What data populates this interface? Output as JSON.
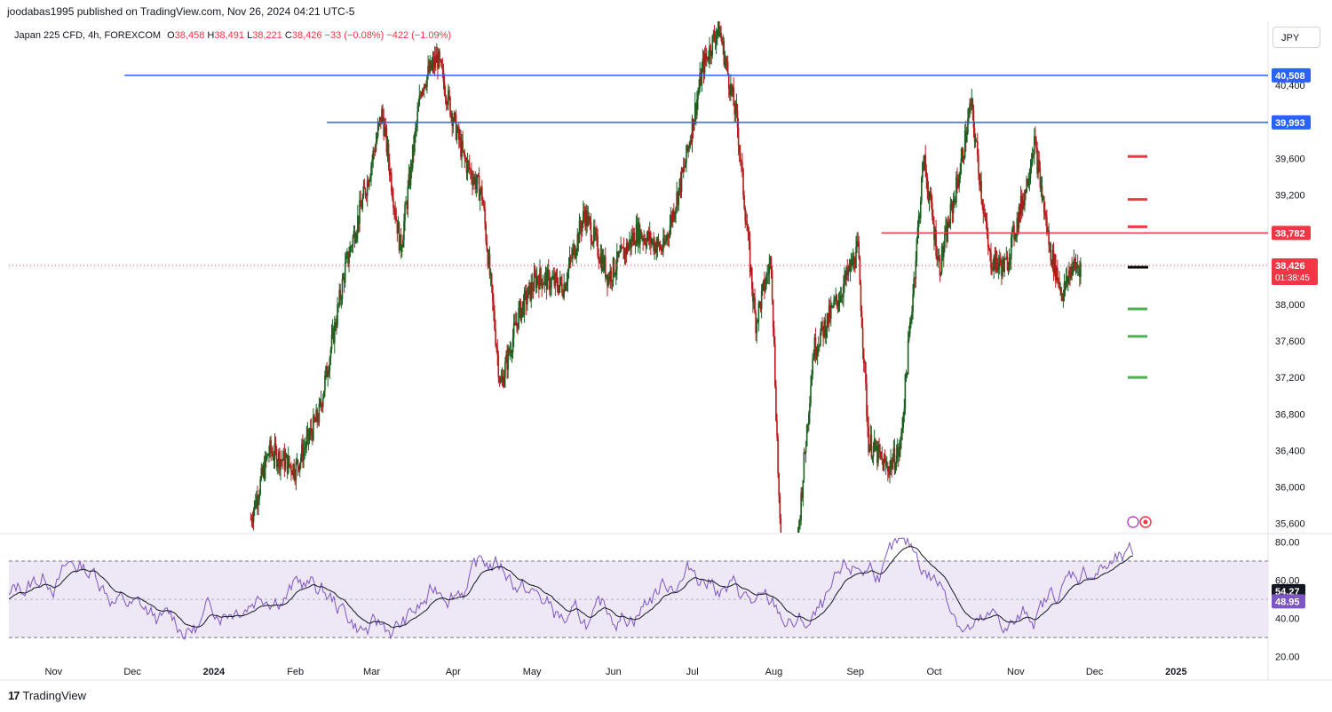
{
  "header": {
    "published_by": "joodabas1995 published on TradingView.com, Nov 26, 2024 04:21 UTC-5"
  },
  "symbol_line": {
    "name": "Japan 225 CFD, 4h, FOREXCOM",
    "o_label": "O",
    "o": "38,458",
    "h_label": "H",
    "h": "38,491",
    "l_label": "L",
    "l": "38,221",
    "c_label": "C",
    "c": "38,426",
    "change": "−33 (−0.08%)",
    "change2": "−422 (−1.09%)"
  },
  "currency_button": "JPY",
  "footer": {
    "logo": "17",
    "brand": "TradingView"
  },
  "colors": {
    "up": "#1b5e20",
    "down": "#b71c1c",
    "hline_blue": "#2962ff",
    "hline_red": "#f23645",
    "target_red": "#f23645",
    "target_green": "#4caf50",
    "rsi_line": "#7e57c2",
    "rsi_ma": "#131722",
    "rsi_band": "#ede7f6"
  },
  "chart_data": [
    {
      "type": "candlestick",
      "title": "Japan 225 CFD, 4h, FOREXCOM",
      "yticks": [
        "40,400",
        "39,600",
        "39,200",
        "38,000",
        "37,600",
        "37,200",
        "36,800",
        "36,400",
        "36,000",
        "35,600"
      ],
      "ylim": [
        35500,
        41100
      ],
      "xticks": [
        "Nov",
        "Dec",
        "2024",
        "Feb",
        "Mar",
        "Apr",
        "May",
        "Jun",
        "Jul",
        "Aug",
        "Sep",
        "Oct",
        "Nov",
        "Dec",
        "2025"
      ],
      "x_range": [
        "2023-10-15",
        "2025-02-05"
      ],
      "approx_close_path": [
        [
          "2024-01-15",
          35650
        ],
        [
          "2024-01-22",
          36400
        ],
        [
          "2024-02-01",
          36200
        ],
        [
          "2024-02-10",
          36800
        ],
        [
          "2024-02-20",
          38400
        ],
        [
          "2024-02-28",
          39300
        ],
        [
          "2024-03-05",
          40100
        ],
        [
          "2024-03-12",
          38600
        ],
        [
          "2024-03-20",
          40400
        ],
        [
          "2024-03-26",
          40700
        ],
        [
          "2024-04-05",
          39600
        ],
        [
          "2024-04-12",
          39200
        ],
        [
          "2024-04-19",
          37100
        ],
        [
          "2024-04-26",
          37900
        ],
        [
          "2024-05-03",
          38300
        ],
        [
          "2024-05-13",
          38200
        ],
        [
          "2024-05-21",
          39000
        ],
        [
          "2024-05-30",
          38300
        ],
        [
          "2024-06-10",
          38800
        ],
        [
          "2024-06-20",
          38600
        ],
        [
          "2024-06-28",
          39500
        ],
        [
          "2024-07-05",
          40600
        ],
        [
          "2024-07-11",
          41050
        ],
        [
          "2024-07-18",
          40000
        ],
        [
          "2024-07-25",
          37800
        ],
        [
          "2024-07-31",
          38500
        ],
        [
          "2024-08-05",
          34000
        ],
        [
          "2024-08-10",
          35400
        ],
        [
          "2024-08-16",
          37500
        ],
        [
          "2024-08-26",
          38100
        ],
        [
          "2024-09-02",
          38600
        ],
        [
          "2024-09-06",
          36500
        ],
        [
          "2024-09-13",
          36200
        ],
        [
          "2024-09-18",
          36400
        ],
        [
          "2024-09-27",
          39600
        ],
        [
          "2024-10-03",
          38400
        ],
        [
          "2024-10-11",
          39500
        ],
        [
          "2024-10-15",
          40200
        ],
        [
          "2024-10-22",
          38500
        ],
        [
          "2024-10-28",
          38400
        ],
        [
          "2024-11-05",
          39300
        ],
        [
          "2024-11-08",
          39800
        ],
        [
          "2024-11-14",
          38600
        ],
        [
          "2024-11-19",
          38100
        ],
        [
          "2024-11-22",
          38400
        ],
        [
          "2024-11-26",
          38426
        ]
      ],
      "horizontal_lines": [
        {
          "label": "40,508",
          "value": 40508,
          "color": "#2962ff",
          "start": "2023-11-28"
        },
        {
          "label": "39,993",
          "value": 39993,
          "color": "#2962ff",
          "start": "2024-02-13"
        },
        {
          "label": "38,782",
          "value": 38782,
          "color": "#f23645",
          "start": "2024-09-11"
        }
      ],
      "current_price": {
        "label": "38,426",
        "countdown": "01:38:45",
        "value": 38426
      },
      "target_marks_red": [
        39620,
        39150,
        38850
      ],
      "target_marks_green": [
        37950,
        37650,
        37200
      ]
    },
    {
      "type": "line",
      "title": "RSI",
      "yticks": [
        "80.00",
        "60.00",
        "40.00",
        "20.00"
      ],
      "ylim": [
        18,
        83
      ],
      "bands": [
        30,
        70
      ],
      "midline": 50,
      "series": [
        {
          "label": "54.27",
          "value": 54.27,
          "color": "#131722"
        },
        {
          "label": "48.95",
          "value": 48.95,
          "color": "#7e57c2"
        }
      ]
    }
  ]
}
